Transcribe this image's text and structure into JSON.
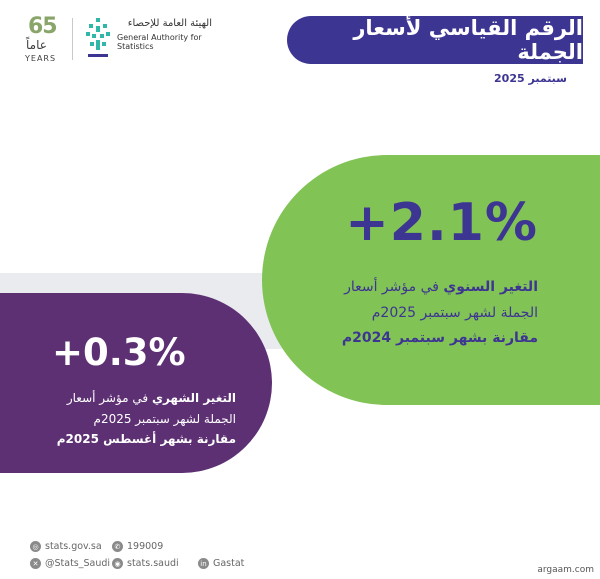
{
  "header": {
    "title": "الرقم القياسي لأسعار الجملة",
    "date": "سبتمبر 2025"
  },
  "logos": {
    "years_number": "65",
    "years_ar": "عاماً",
    "years_en": "YEARS",
    "authority_ar": "الهيئة العامة للإحصاء",
    "authority_en": "General Authority for Statistics"
  },
  "annual": {
    "value": "+2.1%",
    "line1_bold": "التغير السنوي",
    "line1_rest": " في مؤشر أسعار",
    "line2": "الجملة لشهر سبتمبر 2025م",
    "line3": "مقارنة بشهر سبتمبر 2024م"
  },
  "monthly": {
    "value": "+0.3%",
    "line1_bold": "التغير الشهري",
    "line1_rest": " في مؤشر أسعار",
    "line2": "الجملة لشهر سبتمبر 2025م",
    "line3": "مقارنة بشهر أغسطس 2025م"
  },
  "footer": {
    "website": "stats.gov.sa",
    "phone": "199009",
    "twitter": "@Stats_Saudi",
    "instagram": "stats.saudi",
    "linkedin": "Gastat",
    "watermark": "argaam.com"
  },
  "colors": {
    "primary_purple": "#3d3592",
    "green": "#82c355",
    "dark_purple": "#5d2f73"
  }
}
